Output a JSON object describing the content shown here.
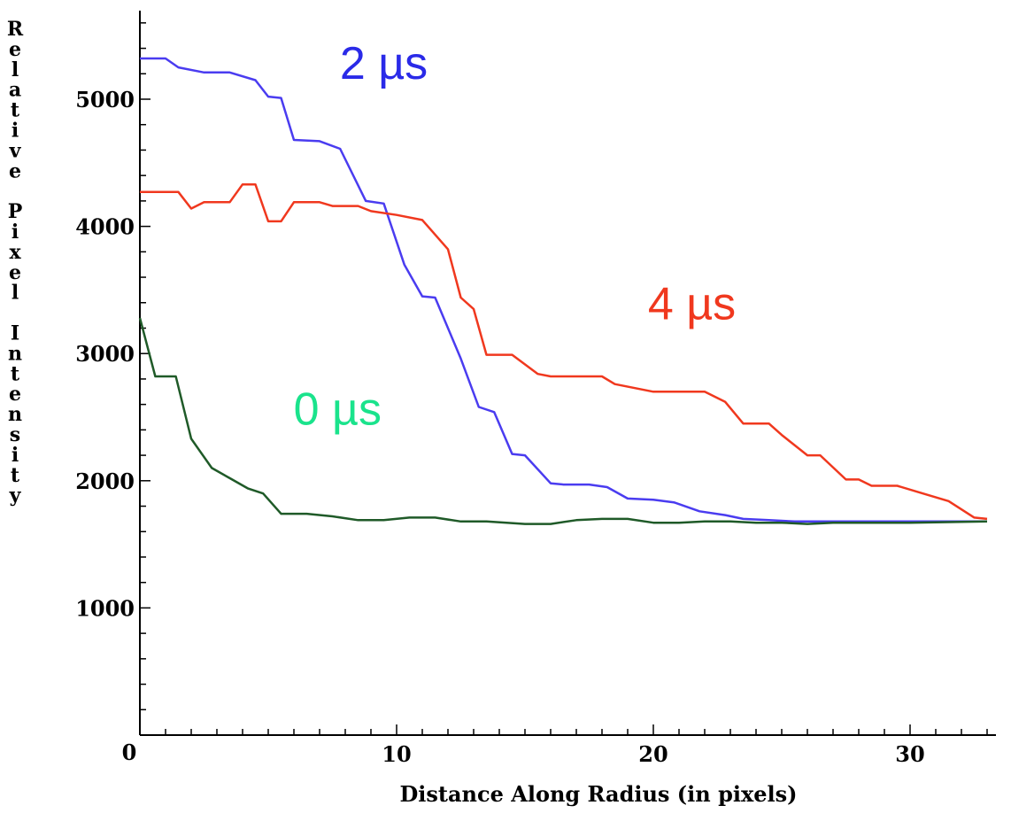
{
  "chart_data": {
    "type": "line",
    "title": "",
    "xlabel": "Distance Along Radius (in pixels)",
    "ylabel": "Relative Pixel Intensity",
    "xlim": [
      0,
      33.5
    ],
    "ylim": [
      0,
      5700
    ],
    "x_ticks": [
      10,
      20,
      30
    ],
    "y_ticks": [
      1000,
      2000,
      3000,
      4000,
      5000
    ],
    "origin_label": "0",
    "grid": false,
    "legend": "none",
    "series": [
      {
        "name": "2 µs",
        "color": "#4a3cf0",
        "label_color": "#2a2ae8",
        "points": [
          [
            0,
            5320
          ],
          [
            0.5,
            5320
          ],
          [
            1,
            5320
          ],
          [
            1.5,
            5250
          ],
          [
            2.5,
            5210
          ],
          [
            3.5,
            5210
          ],
          [
            4.5,
            5150
          ],
          [
            5,
            5020
          ],
          [
            5.5,
            5010
          ],
          [
            6,
            4680
          ],
          [
            7,
            4670
          ],
          [
            7.8,
            4610
          ],
          [
            8.8,
            4200
          ],
          [
            9.5,
            4180
          ],
          [
            10.3,
            3700
          ],
          [
            11,
            3450
          ],
          [
            11.5,
            3440
          ],
          [
            12.5,
            2960
          ],
          [
            13.2,
            2580
          ],
          [
            13.8,
            2540
          ],
          [
            14.5,
            2210
          ],
          [
            15,
            2200
          ],
          [
            16,
            1980
          ],
          [
            16.5,
            1970
          ],
          [
            17.5,
            1970
          ],
          [
            18.2,
            1950
          ],
          [
            19,
            1860
          ],
          [
            20,
            1850
          ],
          [
            20.8,
            1830
          ],
          [
            21.8,
            1760
          ],
          [
            22.8,
            1730
          ],
          [
            23.5,
            1700
          ],
          [
            24.5,
            1690
          ],
          [
            25.5,
            1680
          ],
          [
            28,
            1680
          ],
          [
            33,
            1680
          ]
        ]
      },
      {
        "name": "4 µs",
        "color": "#f0381e",
        "label_color": "#f0381e",
        "points": [
          [
            0,
            4270
          ],
          [
            1.5,
            4270
          ],
          [
            2,
            4140
          ],
          [
            2.5,
            4190
          ],
          [
            3.5,
            4190
          ],
          [
            4,
            4330
          ],
          [
            4.5,
            4330
          ],
          [
            5,
            4040
          ],
          [
            5.5,
            4040
          ],
          [
            6,
            4190
          ],
          [
            7,
            4190
          ],
          [
            7.5,
            4160
          ],
          [
            8.5,
            4160
          ],
          [
            9,
            4120
          ],
          [
            10,
            4090
          ],
          [
            11,
            4050
          ],
          [
            12,
            3820
          ],
          [
            12.5,
            3440
          ],
          [
            13,
            3350
          ],
          [
            13.5,
            2990
          ],
          [
            14.5,
            2990
          ],
          [
            15.5,
            2840
          ],
          [
            16,
            2820
          ],
          [
            18,
            2820
          ],
          [
            18.5,
            2760
          ],
          [
            20,
            2700
          ],
          [
            21,
            2700
          ],
          [
            22,
            2700
          ],
          [
            22.8,
            2620
          ],
          [
            23.5,
            2450
          ],
          [
            24.5,
            2450
          ],
          [
            25,
            2360
          ],
          [
            26,
            2200
          ],
          [
            26.5,
            2200
          ],
          [
            27.5,
            2010
          ],
          [
            28,
            2010
          ],
          [
            28.5,
            1960
          ],
          [
            29.5,
            1960
          ],
          [
            30.5,
            1900
          ],
          [
            31.5,
            1840
          ],
          [
            32.5,
            1710
          ],
          [
            33,
            1700
          ]
        ]
      },
      {
        "name": "0 µs",
        "color": "#1f5a28",
        "label_color": "#1ae38c",
        "points": [
          [
            0,
            3280
          ],
          [
            0.6,
            2820
          ],
          [
            1.4,
            2820
          ],
          [
            2,
            2330
          ],
          [
            2.8,
            2100
          ],
          [
            3.5,
            2020
          ],
          [
            4.2,
            1940
          ],
          [
            4.8,
            1900
          ],
          [
            5.5,
            1740
          ],
          [
            6.5,
            1740
          ],
          [
            7.5,
            1720
          ],
          [
            8.5,
            1690
          ],
          [
            9.5,
            1690
          ],
          [
            10.5,
            1710
          ],
          [
            11.5,
            1710
          ],
          [
            12.5,
            1680
          ],
          [
            13.5,
            1680
          ],
          [
            15,
            1660
          ],
          [
            16,
            1660
          ],
          [
            17,
            1690
          ],
          [
            18,
            1700
          ],
          [
            19,
            1700
          ],
          [
            20,
            1670
          ],
          [
            21,
            1670
          ],
          [
            22,
            1680
          ],
          [
            23,
            1680
          ],
          [
            24,
            1670
          ],
          [
            25,
            1670
          ],
          [
            26,
            1660
          ],
          [
            27,
            1670
          ],
          [
            28,
            1670
          ],
          [
            30,
            1670
          ],
          [
            33,
            1680
          ]
        ]
      }
    ],
    "annotations": [
      {
        "text": "2 µs",
        "series": 0,
        "x": 9.5,
        "y": 5160
      },
      {
        "text": "4 µs",
        "series": 1,
        "x": 21.5,
        "y": 3270
      },
      {
        "text": "0 µs",
        "series": 2,
        "x": 7.7,
        "y": 2440
      }
    ]
  }
}
